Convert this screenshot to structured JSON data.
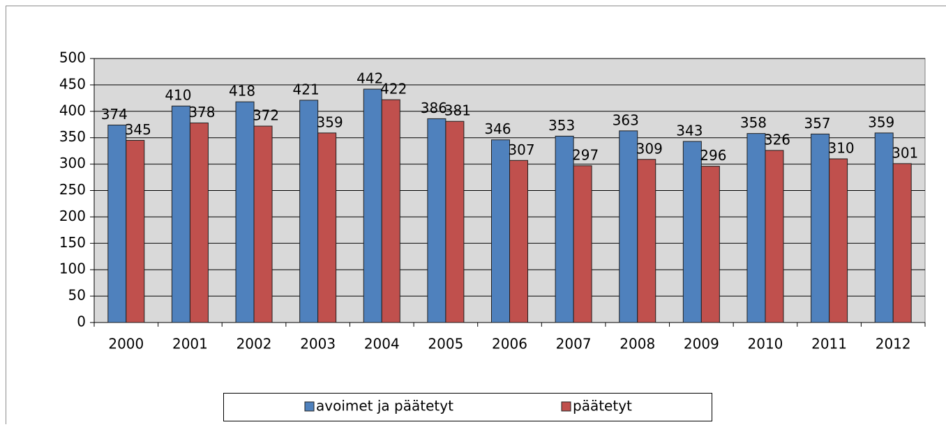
{
  "chart_data": {
    "type": "bar",
    "categories": [
      "2000",
      "2001",
      "2002",
      "2003",
      "2004",
      "2005",
      "2006",
      "2007",
      "2008",
      "2009",
      "2010",
      "2011",
      "2012"
    ],
    "series": [
      {
        "name": "avoimet ja päätetyt",
        "color": "#4f81bd",
        "values": [
          374,
          410,
          418,
          421,
          442,
          386,
          346,
          353,
          363,
          343,
          358,
          357,
          359
        ]
      },
      {
        "name": "päätetyt",
        "color": "#c0504d",
        "values": [
          345,
          378,
          372,
          359,
          422,
          381,
          307,
          297,
          309,
          296,
          326,
          310,
          301
        ]
      }
    ],
    "ylim": [
      0,
      500
    ],
    "yticks": [
      0,
      50,
      100,
      150,
      200,
      250,
      300,
      350,
      400,
      450,
      500
    ],
    "grid": true,
    "data_labels": true,
    "legend": "bottom"
  }
}
